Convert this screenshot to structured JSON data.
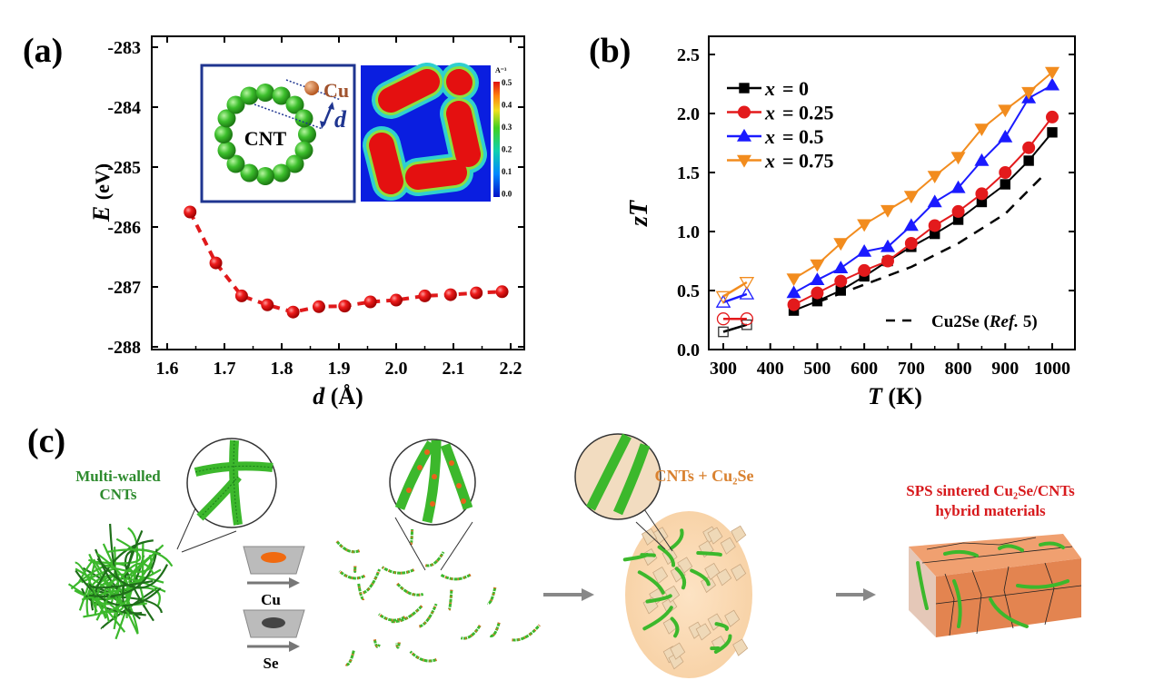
{
  "panel_labels": {
    "a": "(a)",
    "b": "(b)",
    "c": "(c)"
  },
  "chart_data": [
    {
      "type": "line",
      "panel": "(a)",
      "xlabel_var": "d",
      "xlabel_unit": "(Å)",
      "ylabel_var": "E",
      "ylabel_unit": "(eV)",
      "xlim": [
        1.55,
        2.25
      ],
      "ylim": [
        -288,
        -283
      ],
      "xticks": [
        "1.6",
        "1.7",
        "1.8",
        "1.9",
        "2.0",
        "2.1",
        "2.2"
      ],
      "yticks": [
        "-288",
        "-287",
        "-286",
        "-285",
        "-284",
        "-283"
      ],
      "grid": false,
      "series": [
        {
          "color": "#e0191b",
          "marker": "sphere",
          "line": "dashed",
          "x": [
            1.64,
            1.685,
            1.73,
            1.775,
            1.82,
            1.865,
            1.91,
            1.955,
            2.0,
            2.05,
            2.095,
            2.14,
            2.185
          ],
          "y": [
            -285.75,
            -286.6,
            -287.15,
            -287.3,
            -287.42,
            -287.33,
            -287.32,
            -287.25,
            -287.22,
            -287.15,
            -287.13,
            -287.1,
            -287.08
          ]
        }
      ],
      "inset": {
        "structure_label": "CNT",
        "atom_label": "Cu",
        "distance_label": "d",
        "colorbar_unit": "A⁻³",
        "colorbar_ticks": [
          "0.5",
          "0.4",
          "0.3",
          "0.2",
          "0.1",
          "0.0"
        ]
      }
    },
    {
      "type": "line",
      "panel": "(b)",
      "xlabel_var": "T",
      "xlabel_unit": "(K)",
      "ylabel": "zT",
      "xlim": [
        250,
        1025
      ],
      "ylim": [
        0.0,
        2.5
      ],
      "xticks": [
        "300",
        "400",
        "500",
        "600",
        "700",
        "800",
        "900",
        "1000"
      ],
      "yticks": [
        "0.0",
        "0.5",
        "1.0",
        "1.5",
        "2.0",
        "2.5"
      ],
      "grid": false,
      "legend_position": "top-left",
      "x": [
        300,
        350,
        450,
        500,
        550,
        600,
        650,
        700,
        750,
        800,
        850,
        900,
        950,
        1000
      ],
      "open_marker_x": [
        300,
        350
      ],
      "series": [
        {
          "name": "x = 0",
          "var": "x",
          "val": "= 0",
          "color": "#000000",
          "marker": "square",
          "values": [
            0.15,
            0.21,
            0.33,
            0.41,
            0.5,
            0.62,
            0.75,
            0.87,
            0.98,
            1.1,
            1.25,
            1.4,
            1.6,
            1.84
          ]
        },
        {
          "name": "x = 0.25",
          "var": "x",
          "val": "= 0.25",
          "color": "#e31a1c",
          "marker": "circle",
          "values": [
            0.26,
            0.26,
            0.38,
            0.48,
            0.58,
            0.67,
            0.75,
            0.9,
            1.05,
            1.17,
            1.32,
            1.5,
            1.71,
            1.97
          ]
        },
        {
          "name": "x = 0.5",
          "var": "x",
          "val": "= 0.5",
          "color": "#1a1aff",
          "marker": "triangle-up",
          "values": [
            0.4,
            0.47,
            0.48,
            0.59,
            0.69,
            0.83,
            0.87,
            1.05,
            1.25,
            1.37,
            1.6,
            1.8,
            2.13,
            2.24
          ]
        },
        {
          "name": "x = 0.75",
          "var": "x",
          "val": "= 0.75",
          "color": "#f28c1e",
          "marker": "triangle-down",
          "values": [
            0.45,
            0.57,
            0.6,
            0.72,
            0.9,
            1.06,
            1.18,
            1.3,
            1.47,
            1.63,
            1.87,
            2.03,
            2.18,
            2.35
          ]
        }
      ],
      "reference": {
        "label_main": "Cu2Se (",
        "label_ref": "Ref.",
        "label_tail": " 5)",
        "color": "#000000",
        "line": "dashed",
        "x": [
          500,
          600,
          700,
          800,
          900,
          980
        ],
        "y": [
          0.4,
          0.55,
          0.7,
          0.9,
          1.15,
          1.47
        ]
      }
    }
  ],
  "schematic": {
    "mwcnt_label_1": "Multi-walled",
    "mwcnt_label_2": "CNTs",
    "cu_label": "Cu",
    "se_label": "Se",
    "mix_label": "CNTs + Cu₂Se",
    "product_label_1": "SPS sintered  Cu₂Se/CNTs",
    "product_label_2": "hybrid materials",
    "colors": {
      "cnt": "#3cb82c",
      "cu": "#e8641c",
      "mix_label": "#d9812f",
      "product_label": "#d7191c"
    }
  }
}
